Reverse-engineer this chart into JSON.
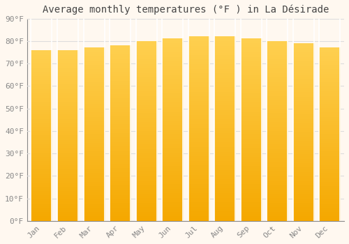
{
  "title": "Average monthly temperatures (°F ) in La Désirade",
  "months": [
    "Jan",
    "Feb",
    "Mar",
    "Apr",
    "May",
    "Jun",
    "Jul",
    "Aug",
    "Sep",
    "Oct",
    "Nov",
    "Dec"
  ],
  "values": [
    76,
    76,
    77,
    78,
    80,
    81,
    82,
    82,
    81,
    80,
    79,
    77
  ],
  "ylim": [
    0,
    90
  ],
  "yticks": [
    0,
    10,
    20,
    30,
    40,
    50,
    60,
    70,
    80,
    90
  ],
  "ytick_labels": [
    "0°F",
    "10°F",
    "20°F",
    "30°F",
    "40°F",
    "50°F",
    "60°F",
    "70°F",
    "80°F",
    "90°F"
  ],
  "bar_color_mid": "#F5A800",
  "bar_color_light": "#FFD050",
  "background_color": "#FFF8F0",
  "grid_color": "#DDDDDD",
  "title_fontsize": 10,
  "tick_fontsize": 8,
  "tick_color": "#888888",
  "title_color": "#444444",
  "bar_edge_color": "#FFFFFF",
  "bar_width": 0.8
}
